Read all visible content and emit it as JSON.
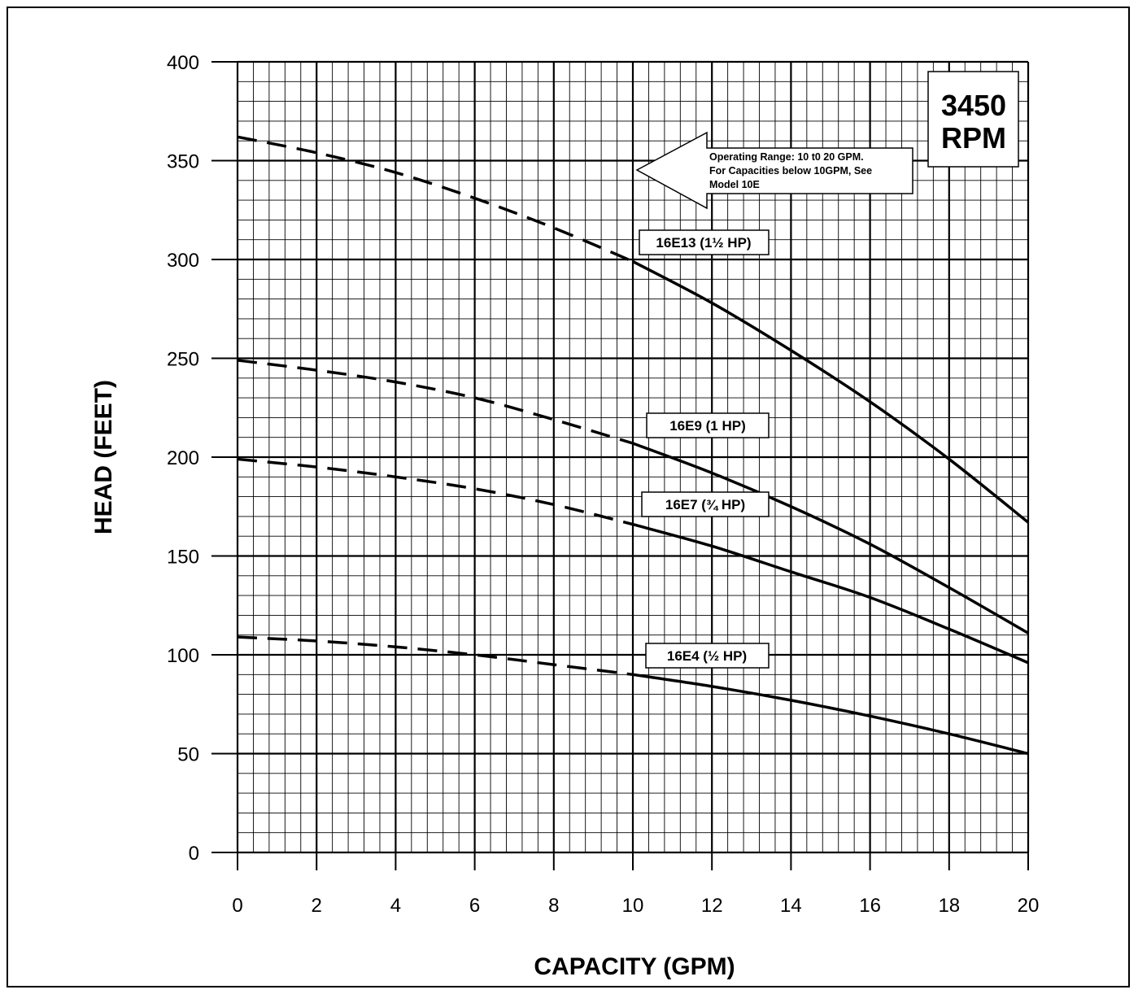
{
  "chart_data": {
    "type": "line",
    "xlabel": "CAPACITY (GPM)",
    "ylabel": "HEAD (FEET)",
    "xlim": [
      0,
      20
    ],
    "ylim": [
      0,
      400
    ],
    "xticks": [
      "0",
      "2",
      "4",
      "6",
      "8",
      "10",
      "12",
      "14",
      "16",
      "18",
      "20"
    ],
    "yticks": [
      "0",
      "50",
      "100",
      "150",
      "200",
      "250",
      "300",
      "350",
      "400"
    ],
    "grid": true,
    "rpm_box": {
      "line1": "3450",
      "line2": "RPM"
    },
    "annotation": {
      "lines": [
        "Operating Range: 10 t0 20 GPM.",
        "For Capacities below 10GPM, See",
        "Model 10E"
      ]
    },
    "series": [
      {
        "name": "16E13 (1½ HP)",
        "dashed": {
          "x": [
            0,
            2,
            4,
            6,
            8,
            10
          ],
          "y": [
            362,
            354,
            344,
            331,
            316,
            299
          ]
        },
        "solid": {
          "x": [
            10,
            12,
            14,
            16,
            18,
            20
          ],
          "y": [
            299,
            278,
            254,
            228,
            199,
            167
          ]
        }
      },
      {
        "name": "16E9 (1 HP)",
        "dashed": {
          "x": [
            0,
            2,
            4,
            6,
            8,
            10
          ],
          "y": [
            249,
            244,
            238,
            230,
            219,
            207
          ]
        },
        "solid": {
          "x": [
            10,
            12,
            14,
            16,
            18,
            20
          ],
          "y": [
            207,
            192,
            175,
            156,
            134,
            111
          ]
        }
      },
      {
        "name": "16E7 (¾ HP)",
        "dashed": {
          "x": [
            0,
            2,
            4,
            6,
            8,
            10
          ],
          "y": [
            199,
            195,
            190,
            184,
            176,
            166
          ]
        },
        "solid": {
          "x": [
            10,
            12,
            14,
            16,
            18,
            20
          ],
          "y": [
            166,
            155,
            142,
            129,
            113,
            96
          ]
        }
      },
      {
        "name": "16E4 (½ HP)",
        "dashed": {
          "x": [
            0,
            2,
            4,
            6,
            8,
            10
          ],
          "y": [
            109,
            107,
            104,
            100,
            95,
            90
          ]
        },
        "solid": {
          "x": [
            10,
            12,
            14,
            16,
            18,
            20
          ],
          "y": [
            90,
            84,
            77,
            69,
            60,
            50
          ]
        }
      }
    ]
  }
}
